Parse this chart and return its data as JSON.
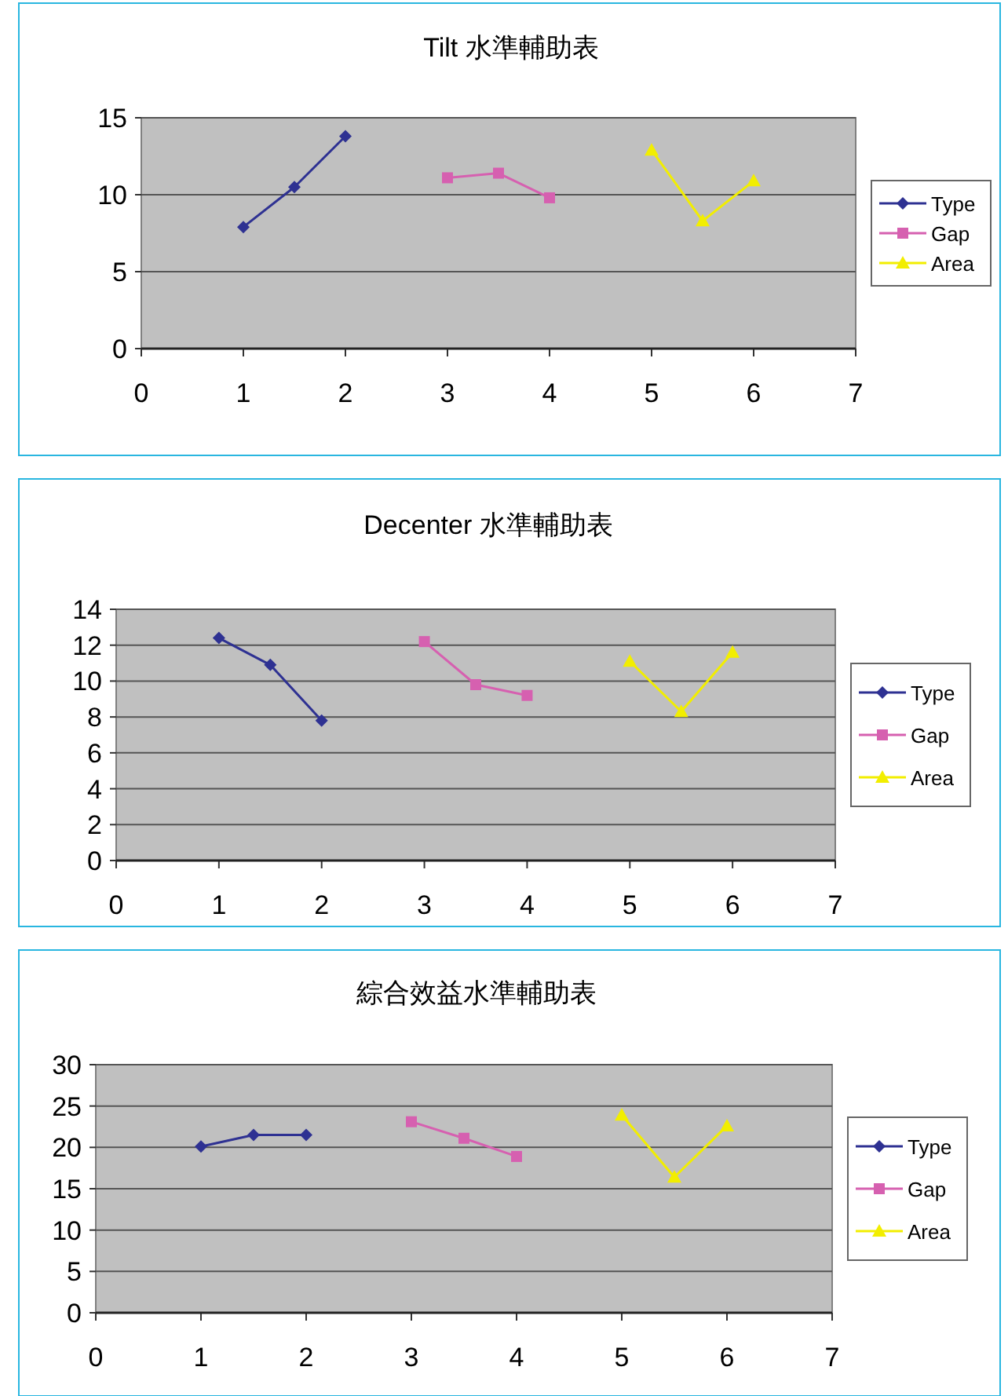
{
  "chart_data": [
    {
      "type": "line",
      "title": "Tilt 水準輔助表",
      "xlim": [
        0,
        7
      ],
      "xticks": [
        0,
        1,
        2,
        3,
        4,
        5,
        6,
        7
      ],
      "ylim": [
        0,
        15
      ],
      "yticks": [
        0,
        5,
        10,
        15
      ],
      "grid": "y",
      "legend": "right",
      "series": [
        {
          "name": "Type",
          "color": "#2e3192",
          "marker": "diamond",
          "x": [
            1,
            1.5,
            2
          ],
          "values": [
            7.9,
            10.5,
            13.8
          ]
        },
        {
          "name": "Gap",
          "color": "#d660b0",
          "marker": "square",
          "x": [
            3,
            3.5,
            4
          ],
          "values": [
            11.1,
            11.4,
            9.8
          ]
        },
        {
          "name": "Area",
          "color": "#f2ee00",
          "marker": "triangle",
          "x": [
            5,
            5.5,
            6
          ],
          "values": [
            12.9,
            8.3,
            10.9
          ]
        }
      ]
    },
    {
      "type": "line",
      "title": "Decenter 水準輔助表",
      "xlim": [
        0,
        7
      ],
      "xticks": [
        0,
        1,
        2,
        3,
        4,
        5,
        6,
        7
      ],
      "ylim": [
        0,
        14
      ],
      "yticks": [
        0,
        2,
        4,
        6,
        8,
        10,
        12,
        14
      ],
      "grid": "y",
      "legend": "right",
      "series": [
        {
          "name": "Type",
          "color": "#2e3192",
          "marker": "diamond",
          "x": [
            1,
            1.5,
            2
          ],
          "values": [
            12.4,
            10.9,
            7.8
          ]
        },
        {
          "name": "Gap",
          "color": "#d660b0",
          "marker": "square",
          "x": [
            3,
            3.5,
            4
          ],
          "values": [
            12.2,
            9.8,
            9.2
          ]
        },
        {
          "name": "Area",
          "color": "#f2ee00",
          "marker": "triangle",
          "x": [
            5,
            5.5,
            6
          ],
          "values": [
            11.1,
            8.3,
            11.6
          ]
        }
      ]
    },
    {
      "type": "line",
      "title": "綜合效益水準輔助表",
      "xlim": [
        0,
        7
      ],
      "xticks": [
        0,
        1,
        2,
        3,
        4,
        5,
        6,
        7
      ],
      "ylim": [
        0,
        30
      ],
      "yticks": [
        0,
        5,
        10,
        15,
        20,
        25,
        30
      ],
      "grid": "y",
      "legend": "right",
      "series": [
        {
          "name": "Type",
          "color": "#2e3192",
          "marker": "diamond",
          "x": [
            1,
            1.5,
            2
          ],
          "values": [
            20.1,
            21.5,
            21.5
          ]
        },
        {
          "name": "Gap",
          "color": "#d660b0",
          "marker": "square",
          "x": [
            3,
            3.5,
            4
          ],
          "values": [
            23.1,
            21.1,
            18.9
          ]
        },
        {
          "name": "Area",
          "color": "#f2ee00",
          "marker": "triangle",
          "x": [
            5,
            5.5,
            6
          ],
          "values": [
            23.9,
            16.4,
            22.6
          ]
        }
      ]
    }
  ]
}
